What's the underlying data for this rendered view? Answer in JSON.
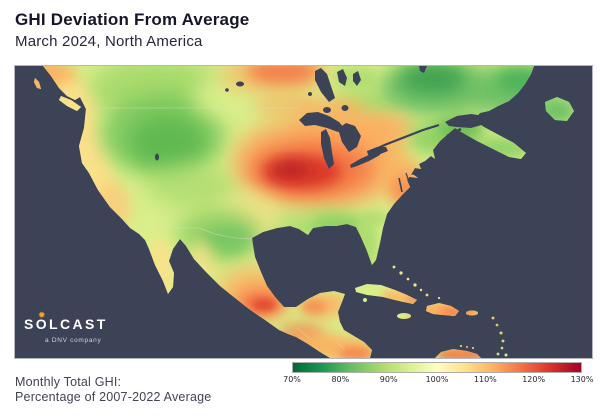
{
  "header": {
    "title": "GHI Deviation From Average",
    "subtitle": "March 2024, North America"
  },
  "logo": {
    "text": "SOLCAST",
    "subtext": "a DNV company",
    "sun_glyph": "✹",
    "sun_color": "#f5a41d"
  },
  "footer": {
    "line1": "Monthly Total GHI:",
    "line2": "Percentage of 2007-2022 Average"
  },
  "legend": {
    "ticks": [
      "70%",
      "80%",
      "90%",
      "100%",
      "110%",
      "120%",
      "130%"
    ],
    "gradient_stops": [
      "#006837",
      "#1a9850",
      "#66bd63",
      "#a6d96a",
      "#d9ef8b",
      "#ffffbf",
      "#fee08b",
      "#fdae61",
      "#f46d43",
      "#d73027",
      "#a50026"
    ]
  },
  "map": {
    "region": "North America",
    "ocean": "#3c4356",
    "land_base": "#d9ef8b",
    "border_line": "rgba(225,220,195,0.55)",
    "blobs": [
      [
        30,
        12,
        32,
        20,
        "#fdae61",
        0.9,
        7
      ],
      [
        58,
        30,
        22,
        16,
        "#fee08b",
        0.85,
        7
      ],
      [
        68,
        62,
        16,
        40,
        "#fee08b",
        0.9,
        7
      ],
      [
        80,
        112,
        18,
        42,
        "#fee08b",
        0.9,
        7
      ],
      [
        96,
        142,
        20,
        26,
        "#fdc97a",
        0.8,
        7
      ],
      [
        140,
        22,
        66,
        32,
        "#a6d96a",
        0.9,
        10
      ],
      [
        148,
        68,
        62,
        42,
        "#7ac95e",
        0.9,
        10
      ],
      [
        152,
        76,
        38,
        26,
        "#55b24c",
        0.75,
        10
      ],
      [
        176,
        120,
        45,
        22,
        "#a6d96a",
        0.7,
        10
      ],
      [
        218,
        30,
        40,
        22,
        "#d9ef8b",
        0.9,
        10
      ],
      [
        260,
        8,
        55,
        20,
        "#fdae61",
        0.7,
        10
      ],
      [
        268,
        5,
        35,
        13,
        "#f46d43",
        0.75,
        7
      ],
      [
        270,
        40,
        30,
        12,
        "#fdae61",
        0.55,
        7
      ],
      [
        340,
        12,
        22,
        12,
        "#a6d96a",
        0.8,
        7
      ],
      [
        352,
        38,
        30,
        16,
        "#a6d96a",
        0.75,
        10
      ],
      [
        420,
        22,
        55,
        28,
        "#66bd63",
        0.9,
        10
      ],
      [
        418,
        12,
        34,
        15,
        "#2e9649",
        0.8,
        10
      ],
      [
        495,
        25,
        42,
        26,
        "#66bd63",
        0.9,
        10
      ],
      [
        508,
        14,
        26,
        13,
        "#3fae54",
        0.75,
        7
      ],
      [
        543,
        45,
        20,
        14,
        "#66bd63",
        0.9,
        7
      ],
      [
        316,
        44,
        34,
        13,
        "#fdae61",
        0.6,
        7
      ],
      [
        332,
        72,
        52,
        26,
        "#fdae61",
        0.75,
        10
      ],
      [
        372,
        62,
        28,
        14,
        "#fdae61",
        0.7,
        7
      ],
      [
        305,
        95,
        88,
        48,
        "#fdae61",
        0.85,
        10
      ],
      [
        296,
        103,
        64,
        30,
        "#f46d43",
        0.8,
        10
      ],
      [
        287,
        106,
        40,
        17,
        "#d73027",
        0.9,
        7
      ],
      [
        276,
        104,
        18,
        8,
        "#b01d20",
        0.75,
        7
      ],
      [
        392,
        118,
        22,
        24,
        "#fdae61",
        0.85,
        7
      ],
      [
        389,
        124,
        12,
        13,
        "#f46d43",
        0.55,
        7
      ],
      [
        428,
        72,
        34,
        18,
        "#8ccf63",
        0.85,
        7
      ],
      [
        447,
        62,
        24,
        12,
        "#55b24c",
        0.7,
        7
      ],
      [
        487,
        82,
        30,
        11,
        "#7ac95e",
        0.8,
        7
      ],
      [
        302,
        163,
        56,
        14,
        "#a6d96a",
        0.9,
        10
      ],
      [
        322,
        158,
        26,
        10,
        "#7ac95e",
        0.7,
        7
      ],
      [
        360,
        152,
        14,
        8,
        "#a6d96a",
        0.6,
        4
      ],
      [
        352,
        181,
        11,
        23,
        "#a6d96a",
        0.9,
        7
      ],
      [
        233,
        152,
        32,
        22,
        "#fee08b",
        0.65,
        10
      ],
      [
        204,
        168,
        42,
        26,
        "#8ccf63",
        0.85,
        10
      ],
      [
        212,
        174,
        26,
        15,
        "#66bd63",
        0.6,
        7
      ],
      [
        146,
        206,
        14,
        34,
        "#fee08b",
        0.85,
        7
      ],
      [
        186,
        196,
        13,
        22,
        "#fee08b",
        0.7,
        7
      ],
      [
        240,
        228,
        38,
        26,
        "#fdae61",
        0.9,
        10
      ],
      [
        246,
        237,
        23,
        13,
        "#f46d43",
        0.85,
        7
      ],
      [
        249,
        239,
        12,
        6,
        "#d73027",
        0.7,
        4
      ],
      [
        308,
        239,
        26,
        13,
        "#fdae61",
        0.85,
        7
      ],
      [
        299,
        241,
        12,
        7,
        "#f46d43",
        0.5,
        4
      ],
      [
        286,
        268,
        22,
        10,
        "#f46d43",
        0.7,
        7
      ],
      [
        300,
        279,
        28,
        12,
        "#fdae61",
        0.85,
        7
      ],
      [
        334,
        283,
        28,
        12,
        "#fdae61",
        0.9,
        7
      ],
      [
        341,
        288,
        17,
        7,
        "#f46d43",
        0.6,
        4
      ],
      [
        388,
        230,
        22,
        7,
        "#fdae61",
        0.9,
        4
      ],
      [
        399,
        234,
        9,
        4,
        "#f46d43",
        0.7,
        4
      ],
      [
        395,
        213,
        24,
        16,
        "#fee08b",
        0.7,
        7
      ],
      [
        430,
        246,
        38,
        10,
        "#fdae61",
        0.95,
        4
      ],
      [
        441,
        246,
        18,
        5,
        "#f46d43",
        0.6,
        4
      ],
      [
        446,
        289,
        26,
        8,
        "#f46d43",
        0.8,
        4
      ],
      [
        480,
        268,
        8,
        22,
        "#fdae61",
        0.8,
        4
      ]
    ]
  }
}
